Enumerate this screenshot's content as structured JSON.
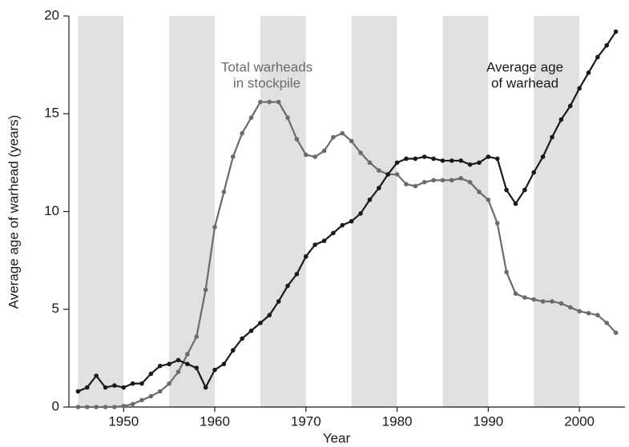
{
  "chart_data": {
    "type": "line",
    "xlabel": "Year",
    "ylabel": "Average age of warhead (years)",
    "x": [
      1945,
      1946,
      1947,
      1948,
      1949,
      1950,
      1951,
      1952,
      1953,
      1954,
      1955,
      1956,
      1957,
      1958,
      1959,
      1960,
      1961,
      1962,
      1963,
      1964,
      1965,
      1966,
      1967,
      1968,
      1969,
      1970,
      1971,
      1972,
      1973,
      1974,
      1975,
      1976,
      1977,
      1978,
      1979,
      1980,
      1981,
      1982,
      1983,
      1984,
      1985,
      1986,
      1987,
      1988,
      1989,
      1990,
      1991,
      1992,
      1993,
      1994,
      1995,
      1996,
      1997,
      1998,
      1999,
      2000,
      2001,
      2002,
      2003,
      2004
    ],
    "series": [
      {
        "label": [
          "Total warheads",
          "in stockpile"
        ],
        "color": "#6b6b6b",
        "values": [
          0,
          0,
          0,
          0,
          0,
          0.05,
          0.15,
          0.35,
          0.55,
          0.8,
          1.2,
          1.8,
          2.7,
          3.6,
          6.0,
          9.2,
          11.0,
          12.8,
          14.0,
          14.8,
          15.6,
          15.6,
          15.6,
          14.8,
          13.7,
          12.9,
          12.8,
          13.1,
          13.8,
          14.0,
          13.6,
          13.0,
          12.5,
          12.1,
          11.9,
          11.9,
          11.4,
          11.3,
          11.5,
          11.6,
          11.6,
          11.6,
          11.7,
          11.5,
          11.0,
          10.6,
          9.4,
          6.9,
          5.8,
          5.6,
          5.5,
          5.4,
          5.4,
          5.3,
          5.1,
          4.9,
          4.8,
          4.7,
          4.3,
          3.8
        ]
      },
      {
        "label": [
          "Average age",
          "of warhead"
        ],
        "color": "#1a1a1a",
        "values": [
          0.8,
          1.0,
          1.6,
          1.0,
          1.1,
          1.0,
          1.2,
          1.2,
          1.7,
          2.1,
          2.2,
          2.4,
          2.2,
          2.0,
          1.0,
          1.9,
          2.2,
          2.9,
          3.5,
          3.9,
          4.3,
          4.7,
          5.4,
          6.2,
          6.8,
          7.7,
          8.3,
          8.5,
          8.9,
          9.3,
          9.5,
          9.9,
          10.6,
          11.2,
          11.9,
          12.5,
          12.7,
          12.7,
          12.8,
          12.7,
          12.6,
          12.6,
          12.6,
          12.4,
          12.5,
          12.8,
          12.7,
          11.1,
          10.4,
          11.1,
          12.0,
          12.8,
          13.8,
          14.7,
          15.4,
          16.3,
          17.1,
          17.9,
          18.5,
          19.2
        ]
      }
    ],
    "xlim": [
      1944,
      2005
    ],
    "ylim": [
      0,
      20
    ],
    "xticks": [
      1950,
      1960,
      1970,
      1980,
      1990,
      2000
    ],
    "yticks": [
      0,
      5,
      10,
      15,
      20
    ],
    "shaded_bands": true,
    "band_color": "#e0e1e3"
  }
}
